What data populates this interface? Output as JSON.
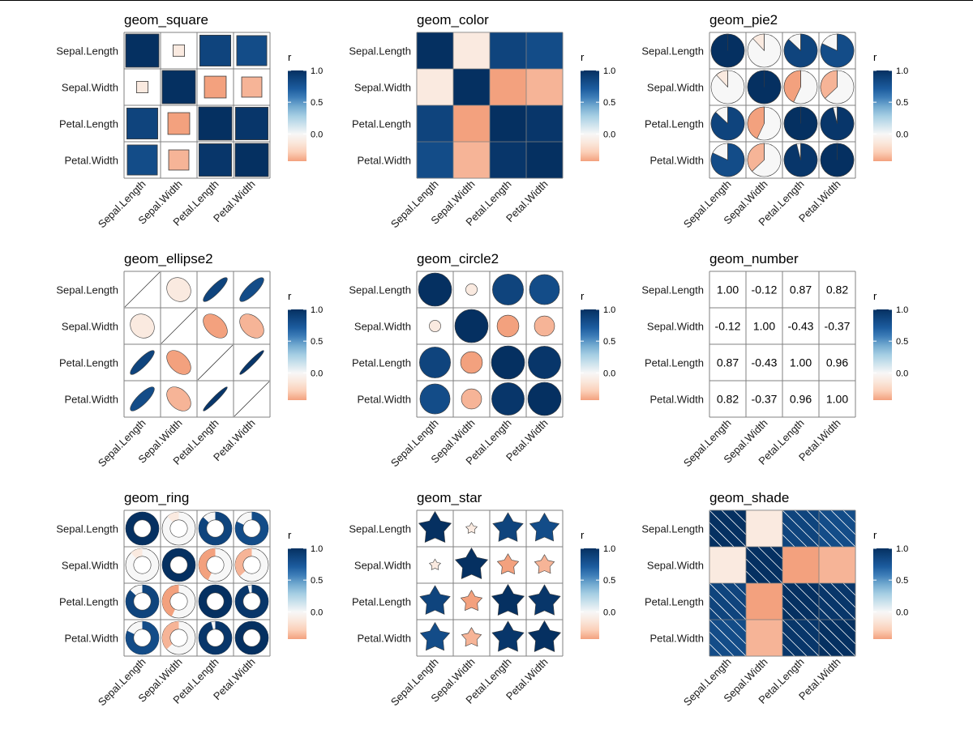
{
  "chart_data": {
    "type": "heatmap",
    "variables": [
      "Sepal.Length",
      "Sepal.Width",
      "Petal.Length",
      "Petal.Width"
    ],
    "matrix": [
      [
        1.0,
        -0.12,
        0.87,
        0.82
      ],
      [
        -0.12,
        1.0,
        -0.43,
        -0.37
      ],
      [
        0.87,
        -0.43,
        1.0,
        0.96
      ],
      [
        0.82,
        -0.37,
        0.96,
        1.0
      ]
    ],
    "number_labels": [
      [
        "1.00",
        "-0.12",
        "0.87",
        "0.82"
      ],
      [
        "-0.12",
        "1.00",
        "-0.43",
        "-0.37"
      ],
      [
        "0.87",
        "-0.43",
        "1.00",
        "0.96"
      ],
      [
        "0.82",
        "-0.37",
        "0.96",
        "1.00"
      ]
    ],
    "legend": {
      "title": "r",
      "ticks": [
        "1.0",
        "0.5",
        "0.0"
      ],
      "tick_values": [
        1.0,
        0.5,
        0.0
      ],
      "range": [
        -0.43,
        1.0
      ],
      "placement": "right"
    },
    "colors": {
      "high": "#053061",
      "mid": "#f7f7f7",
      "low": "#ef8a62",
      "grid": "#808080"
    },
    "panels": [
      {
        "title": "geom_square",
        "geom": "square"
      },
      {
        "title": "geom_color",
        "geom": "color"
      },
      {
        "title": "geom_pie2",
        "geom": "pie2"
      },
      {
        "title": "geom_ellipse2",
        "geom": "ellipse2"
      },
      {
        "title": "geom_circle2",
        "geom": "circle2"
      },
      {
        "title": "geom_number",
        "geom": "number"
      },
      {
        "title": "geom_ring",
        "geom": "ring"
      },
      {
        "title": "geom_star",
        "geom": "star"
      },
      {
        "title": "geom_shade",
        "geom": "shade"
      }
    ]
  }
}
